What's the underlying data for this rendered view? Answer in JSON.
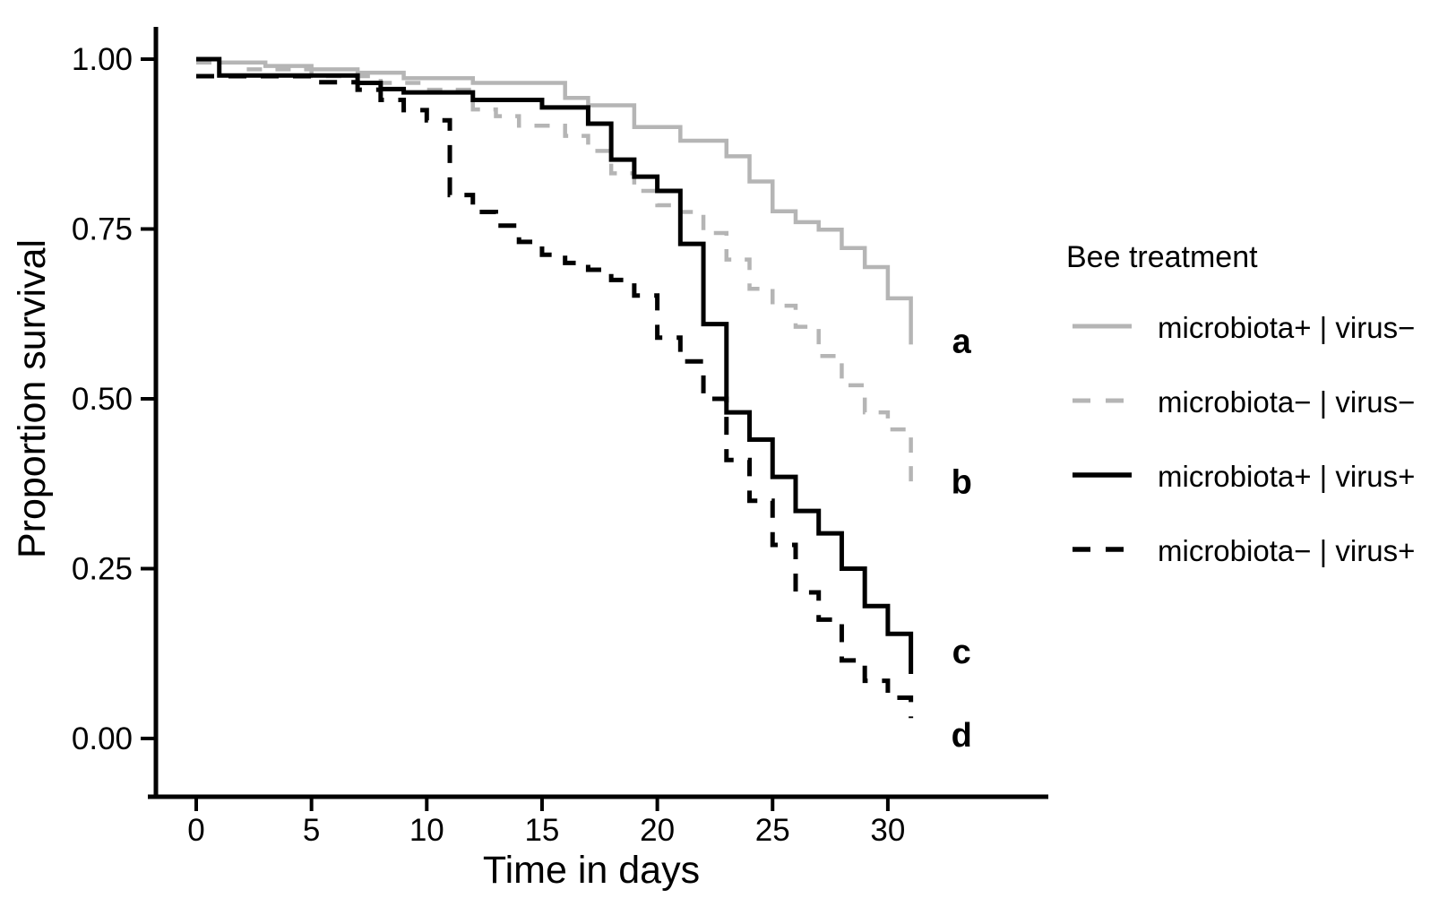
{
  "chart_data": {
    "type": "line",
    "subtype": "kaplan-meier-survival-steps",
    "title": "",
    "xlabel": "Time in days",
    "ylabel": "Proportion survival",
    "legend_title": "Bee treatment",
    "legend_position": "right-outside",
    "grid": false,
    "xlim": [
      0,
      31
    ],
    "ylim": [
      0.0,
      1.0
    ],
    "x_ticks": [
      {
        "label": "0",
        "value": 0
      },
      {
        "label": "5",
        "value": 5
      },
      {
        "label": "10",
        "value": 10
      },
      {
        "label": "15",
        "value": 15
      },
      {
        "label": "20",
        "value": 20
      },
      {
        "label": "25",
        "value": 25
      },
      {
        "label": "30",
        "value": 30
      }
    ],
    "y_ticks": [
      {
        "label": "1.00",
        "value": 1.0
      },
      {
        "label": "0.75",
        "value": 0.75
      },
      {
        "label": "0.50",
        "value": 0.5
      },
      {
        "label": "0.25",
        "value": 0.25
      },
      {
        "label": "0.00",
        "value": 0.0
      }
    ],
    "colors": {
      "gray": "#b5b5b5",
      "black": "#000000"
    },
    "series": [
      {
        "name": "microbiota+ | virus−",
        "group_label": "a",
        "color": "#b5b5b5",
        "dash": "solid",
        "points": [
          [
            0,
            1.0
          ],
          [
            1,
            0.995
          ],
          [
            3,
            0.99
          ],
          [
            5,
            0.985
          ],
          [
            7,
            0.98
          ],
          [
            9,
            0.972
          ],
          [
            12,
            0.965
          ],
          [
            16,
            0.943
          ],
          [
            17,
            0.932
          ],
          [
            19,
            0.9
          ],
          [
            21,
            0.88
          ],
          [
            23,
            0.857
          ],
          [
            24,
            0.82
          ],
          [
            25,
            0.776
          ],
          [
            26,
            0.76
          ],
          [
            27,
            0.749
          ],
          [
            28,
            0.722
          ],
          [
            29,
            0.694
          ],
          [
            30,
            0.648
          ],
          [
            31,
            0.58
          ]
        ]
      },
      {
        "name": "microbiota− | virus−",
        "group_label": "b",
        "color": "#b5b5b5",
        "dash": "dashed",
        "points": [
          [
            0,
            0.995
          ],
          [
            2,
            0.985
          ],
          [
            5,
            0.975
          ],
          [
            8,
            0.965
          ],
          [
            10,
            0.955
          ],
          [
            12,
            0.926
          ],
          [
            13,
            0.916
          ],
          [
            14,
            0.902
          ],
          [
            16,
            0.887
          ],
          [
            17,
            0.865
          ],
          [
            18,
            0.832
          ],
          [
            19,
            0.806
          ],
          [
            20,
            0.785
          ],
          [
            21,
            0.775
          ],
          [
            22,
            0.744
          ],
          [
            23,
            0.705
          ],
          [
            24,
            0.662
          ],
          [
            25,
            0.637
          ],
          [
            26,
            0.606
          ],
          [
            27,
            0.563
          ],
          [
            28,
            0.52
          ],
          [
            29,
            0.48
          ],
          [
            30,
            0.455
          ],
          [
            31,
            0.37
          ]
        ]
      },
      {
        "name": "microbiota+ | virus+",
        "group_label": "c",
        "color": "#000000",
        "dash": "solid",
        "points": [
          [
            0,
            1.0
          ],
          [
            1,
            0.976
          ],
          [
            7,
            0.965
          ],
          [
            8,
            0.956
          ],
          [
            9,
            0.951
          ],
          [
            12,
            0.94
          ],
          [
            15,
            0.929
          ],
          [
            17,
            0.905
          ],
          [
            18,
            0.852
          ],
          [
            19,
            0.827
          ],
          [
            20,
            0.806
          ],
          [
            21,
            0.728
          ],
          [
            22,
            0.61
          ],
          [
            23,
            0.48
          ],
          [
            24,
            0.44
          ],
          [
            25,
            0.385
          ],
          [
            26,
            0.335
          ],
          [
            27,
            0.302
          ],
          [
            28,
            0.25
          ],
          [
            29,
            0.195
          ],
          [
            30,
            0.154
          ],
          [
            31,
            0.095
          ]
        ]
      },
      {
        "name": "microbiota− | virus+",
        "group_label": "d",
        "color": "#000000",
        "dash": "dashed",
        "points": [
          [
            0,
            0.975
          ],
          [
            5,
            0.966
          ],
          [
            7,
            0.955
          ],
          [
            8,
            0.94
          ],
          [
            9,
            0.925
          ],
          [
            10,
            0.91
          ],
          [
            11,
            0.8
          ],
          [
            12,
            0.775
          ],
          [
            13,
            0.755
          ],
          [
            14,
            0.731
          ],
          [
            15,
            0.712
          ],
          [
            16,
            0.7
          ],
          [
            17,
            0.69
          ],
          [
            18,
            0.675
          ],
          [
            19,
            0.652
          ],
          [
            20,
            0.59
          ],
          [
            21,
            0.555
          ],
          [
            22,
            0.5
          ],
          [
            23,
            0.41
          ],
          [
            24,
            0.35
          ],
          [
            25,
            0.285
          ],
          [
            26,
            0.215
          ],
          [
            27,
            0.175
          ],
          [
            28,
            0.115
          ],
          [
            29,
            0.085
          ],
          [
            30,
            0.06
          ],
          [
            31,
            0.03
          ]
        ]
      }
    ],
    "annotations": [
      {
        "text": "a",
        "x_day": 33.2,
        "y_value": 0.585
      },
      {
        "text": "b",
        "x_day": 33.2,
        "y_value": 0.378
      },
      {
        "text": "c",
        "x_day": 33.2,
        "y_value": 0.128
      },
      {
        "text": "d",
        "x_day": 33.2,
        "y_value": 0.005
      }
    ]
  }
}
